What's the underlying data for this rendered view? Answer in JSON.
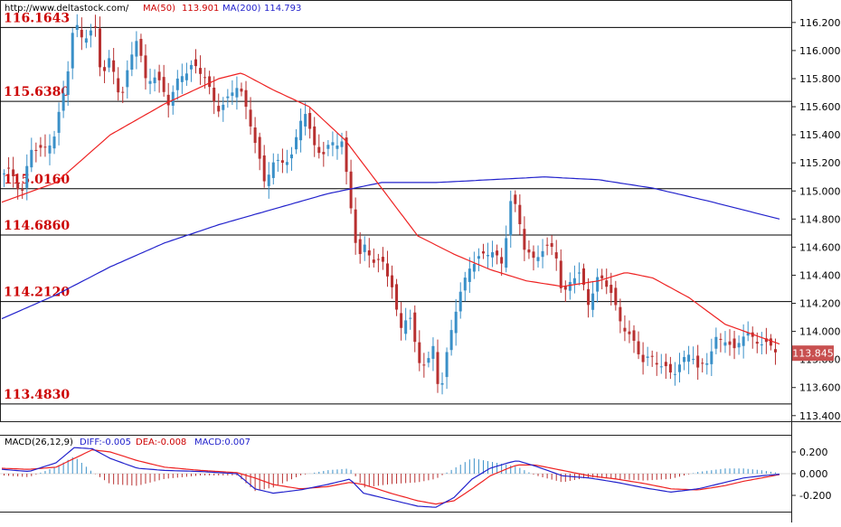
{
  "header": {
    "site": "http://www.deltastock.com/",
    "ma50_label": "MA(50)",
    "ma50_value": "113.901",
    "ma200_label": "MA(200)",
    "ma200_value": "114.793"
  },
  "macd_header": {
    "label": "MACD(26,12,9)",
    "diff": "DIFF:-0.005",
    "dea": "DEA:-0.008",
    "macd": "MACD:0.007"
  },
  "colors": {
    "bull": "#3a90c8",
    "bear": "#b83030",
    "ma50": "#ee2222",
    "ma200": "#2222cc",
    "level_text": "#cc0000",
    "price_badge": "#c85050"
  },
  "current_price": "113.845",
  "chart_data": {
    "type": "candlestick",
    "ylim": [
      113.36,
      116.36
    ],
    "y_ticks": [
      "113.400",
      "113.600",
      "113.800",
      "114.000",
      "114.200",
      "114.400",
      "114.600",
      "114.800",
      "115.000",
      "115.200",
      "115.400",
      "115.600",
      "115.800",
      "116.000",
      "116.200"
    ],
    "levels": [
      "116.1643",
      "115.6380",
      "115.0160",
      "114.6860",
      "114.2120",
      "113.4830"
    ],
    "ma50_label": "MA(50)",
    "ma200_label": "MA(200)",
    "ma50_curve": [
      [
        0,
        114.92
      ],
      [
        60,
        115.06
      ],
      [
        120,
        115.4
      ],
      [
        180,
        115.62
      ],
      [
        240,
        115.8
      ],
      [
        265,
        115.84
      ],
      [
        300,
        115.72
      ],
      [
        340,
        115.6
      ],
      [
        380,
        115.36
      ],
      [
        420,
        115.02
      ],
      [
        460,
        114.68
      ],
      [
        500,
        114.55
      ],
      [
        540,
        114.44
      ],
      [
        580,
        114.36
      ],
      [
        620,
        114.32
      ],
      [
        660,
        114.36
      ],
      [
        690,
        114.42
      ],
      [
        720,
        114.38
      ],
      [
        760,
        114.24
      ],
      [
        800,
        114.05
      ],
      [
        860,
        113.91
      ]
    ],
    "ma200_curve": [
      [
        0,
        114.09
      ],
      [
        60,
        114.26
      ],
      [
        120,
        114.46
      ],
      [
        180,
        114.63
      ],
      [
        240,
        114.76
      ],
      [
        300,
        114.87
      ],
      [
        360,
        114.98
      ],
      [
        420,
        115.06
      ],
      [
        480,
        115.06
      ],
      [
        540,
        115.08
      ],
      [
        600,
        115.1
      ],
      [
        660,
        115.08
      ],
      [
        720,
        115.02
      ],
      [
        780,
        114.93
      ],
      [
        860,
        114.8
      ]
    ],
    "candle_count": 170,
    "candle_close_path": [
      [
        0,
        115.1
      ],
      [
        10,
        115.15
      ],
      [
        22,
        114.98
      ],
      [
        32,
        115.3
      ],
      [
        45,
        115.28
      ],
      [
        58,
        115.4
      ],
      [
        72,
        115.8
      ],
      [
        80,
        116.2
      ],
      [
        90,
        116.1
      ],
      [
        104,
        116.15
      ],
      [
        110,
        115.8
      ],
      [
        120,
        115.95
      ],
      [
        132,
        115.65
      ],
      [
        145,
        116.0
      ],
      [
        150,
        116.1
      ],
      [
        158,
        115.8
      ],
      [
        170,
        115.82
      ],
      [
        184,
        115.62
      ],
      [
        196,
        115.82
      ],
      [
        210,
        115.88
      ],
      [
        225,
        115.82
      ],
      [
        238,
        115.58
      ],
      [
        248,
        115.62
      ],
      [
        262,
        115.78
      ],
      [
        274,
        115.5
      ],
      [
        282,
        115.3
      ],
      [
        290,
        115.05
      ],
      [
        300,
        115.22
      ],
      [
        312,
        115.2
      ],
      [
        322,
        115.25
      ],
      [
        334,
        115.62
      ],
      [
        345,
        115.32
      ],
      [
        355,
        115.25
      ],
      [
        366,
        115.35
      ],
      [
        376,
        115.36
      ],
      [
        386,
        114.88
      ],
      [
        394,
        114.5
      ],
      [
        402,
        114.62
      ],
      [
        412,
        114.5
      ],
      [
        422,
        114.48
      ],
      [
        432,
        114.3
      ],
      [
        440,
        114.02
      ],
      [
        450,
        114.15
      ],
      [
        460,
        113.78
      ],
      [
        470,
        113.76
      ],
      [
        478,
        113.92
      ],
      [
        484,
        113.52
      ],
      [
        492,
        113.82
      ],
      [
        500,
        114.1
      ],
      [
        508,
        114.3
      ],
      [
        518,
        114.48
      ],
      [
        530,
        114.52
      ],
      [
        542,
        114.58
      ],
      [
        554,
        114.48
      ],
      [
        562,
        114.92
      ],
      [
        570,
        114.86
      ],
      [
        578,
        114.6
      ],
      [
        588,
        114.52
      ],
      [
        600,
        114.58
      ],
      [
        612,
        114.6
      ],
      [
        620,
        114.24
      ],
      [
        630,
        114.38
      ],
      [
        640,
        114.4
      ],
      [
        648,
        114.2
      ],
      [
        660,
        114.4
      ],
      [
        672,
        114.3
      ],
      [
        682,
        114.1
      ],
      [
        696,
        113.96
      ],
      [
        708,
        113.78
      ],
      [
        720,
        113.82
      ],
      [
        730,
        113.76
      ],
      [
        742,
        113.68
      ],
      [
        752,
        113.78
      ],
      [
        762,
        113.88
      ],
      [
        770,
        113.72
      ],
      [
        780,
        113.78
      ],
      [
        790,
        113.95
      ],
      [
        800,
        113.95
      ],
      [
        810,
        113.85
      ],
      [
        822,
        114.0
      ],
      [
        832,
        113.95
      ],
      [
        844,
        113.9
      ],
      [
        858,
        113.86
      ]
    ],
    "macd": {
      "ylim": [
        -0.35,
        0.35
      ],
      "y_ticks": [
        "0.200",
        "0.000",
        "-0.200"
      ],
      "diff_label": "DIFF",
      "dea_label": "DEA",
      "diff_curve": [
        [
          0,
          0.04
        ],
        [
          30,
          0.02
        ],
        [
          60,
          0.1
        ],
        [
          80,
          0.24
        ],
        [
          100,
          0.23
        ],
        [
          120,
          0.14
        ],
        [
          150,
          0.05
        ],
        [
          180,
          0.03
        ],
        [
          220,
          0.02
        ],
        [
          260,
          0.0
        ],
        [
          280,
          -0.14
        ],
        [
          300,
          -0.18
        ],
        [
          330,
          -0.15
        ],
        [
          360,
          -0.1
        ],
        [
          385,
          -0.05
        ],
        [
          400,
          -0.18
        ],
        [
          430,
          -0.24
        ],
        [
          460,
          -0.3
        ],
        [
          480,
          -0.31
        ],
        [
          500,
          -0.22
        ],
        [
          520,
          -0.05
        ],
        [
          540,
          0.05
        ],
        [
          560,
          0.1
        ],
        [
          570,
          0.12
        ],
        [
          590,
          0.07
        ],
        [
          620,
          -0.02
        ],
        [
          650,
          -0.04
        ],
        [
          680,
          -0.08
        ],
        [
          710,
          -0.13
        ],
        [
          740,
          -0.17
        ],
        [
          770,
          -0.14
        ],
        [
          800,
          -0.08
        ],
        [
          820,
          -0.04
        ],
        [
          840,
          -0.02
        ],
        [
          860,
          -0.005
        ]
      ],
      "dea_curve": [
        [
          0,
          0.05
        ],
        [
          30,
          0.04
        ],
        [
          60,
          0.06
        ],
        [
          80,
          0.14
        ],
        [
          100,
          0.22
        ],
        [
          120,
          0.2
        ],
        [
          150,
          0.12
        ],
        [
          180,
          0.06
        ],
        [
          220,
          0.03
        ],
        [
          260,
          0.01
        ],
        [
          280,
          -0.04
        ],
        [
          300,
          -0.1
        ],
        [
          330,
          -0.14
        ],
        [
          360,
          -0.12
        ],
        [
          385,
          -0.08
        ],
        [
          400,
          -0.1
        ],
        [
          430,
          -0.18
        ],
        [
          460,
          -0.25
        ],
        [
          480,
          -0.28
        ],
        [
          500,
          -0.25
        ],
        [
          520,
          -0.14
        ],
        [
          540,
          -0.02
        ],
        [
          560,
          0.05
        ],
        [
          570,
          0.08
        ],
        [
          590,
          0.08
        ],
        [
          620,
          0.03
        ],
        [
          650,
          -0.02
        ],
        [
          680,
          -0.05
        ],
        [
          710,
          -0.09
        ],
        [
          740,
          -0.14
        ],
        [
          770,
          -0.15
        ],
        [
          800,
          -0.11
        ],
        [
          820,
          -0.07
        ],
        [
          840,
          -0.04
        ],
        [
          860,
          -0.008
        ]
      ]
    }
  }
}
